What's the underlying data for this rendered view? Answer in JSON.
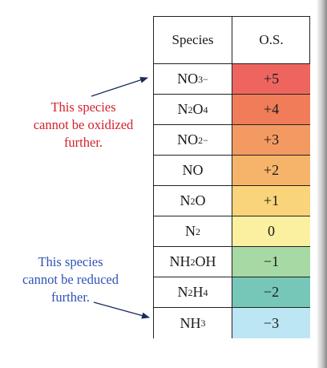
{
  "table": {
    "header": {
      "species": "Species",
      "os": "O.S."
    },
    "rows": [
      {
        "species": "NO3−",
        "os": "+5",
        "color": "#ee6560"
      },
      {
        "species": "N2O4",
        "os": "+4",
        "color": "#f07c5a"
      },
      {
        "species": "NO2−",
        "os": "+3",
        "color": "#f39a62"
      },
      {
        "species": "NO",
        "os": "+2",
        "color": "#f6b46a"
      },
      {
        "species": "N2O",
        "os": "+1",
        "color": "#f9d47a"
      },
      {
        "species": "N2",
        "os": "0",
        "color": "#fbf0a0"
      },
      {
        "species": "NH2OH",
        "os": "−1",
        "color": "#a7d9a4"
      },
      {
        "species": "N2H4",
        "os": "−2",
        "color": "#76c7b8"
      },
      {
        "species": "NH3",
        "os": "−3",
        "color": "#bde6f4"
      }
    ]
  },
  "notes": {
    "oxidized": [
      "This species",
      "cannot be oxidized",
      "further."
    ],
    "reduced": [
      "This species",
      "cannot be reduced",
      "further."
    ],
    "oxidized_color": "#d3222a",
    "reduced_color": "#2e52b8"
  }
}
